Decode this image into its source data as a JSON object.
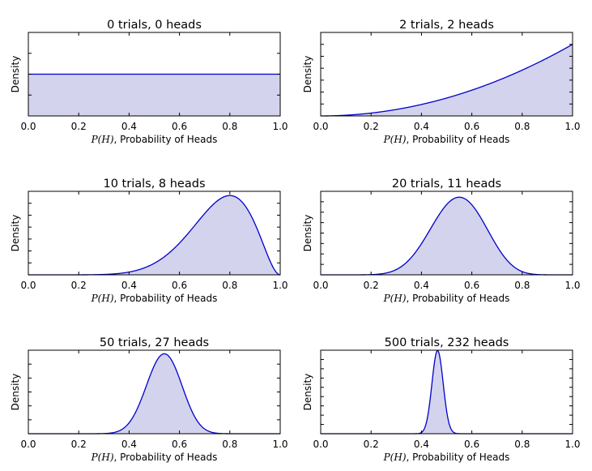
{
  "chart_data": [
    {
      "type": "area",
      "title": "0 trials, 0 heads",
      "trials": 0,
      "heads": 0,
      "xlabel_math": "P(H)",
      "xlabel": ", Probability of Heads",
      "ylabel": "Density",
      "xlim": [
        0,
        1
      ],
      "ylim": [
        0,
        2
      ],
      "ytick_step": 0.5,
      "xticks": [
        "0.0",
        "0.2",
        "0.4",
        "0.6",
        "0.8",
        "1.0"
      ]
    },
    {
      "type": "area",
      "title": "2 trials, 2 heads",
      "trials": 2,
      "heads": 2,
      "xlabel_math": "P(H)",
      "xlabel": ", Probability of Heads",
      "ylabel": "Density",
      "xlim": [
        0,
        1
      ],
      "ylim": [
        0,
        3.5
      ],
      "ytick_step": 0.5,
      "xticks": [
        "0.0",
        "0.2",
        "0.4",
        "0.6",
        "0.8",
        "1.0"
      ]
    },
    {
      "type": "area",
      "title": "10 trials, 8 heads",
      "trials": 10,
      "heads": 8,
      "xlabel_math": "P(H)",
      "xlabel": ", Probability of Heads",
      "ylabel": "Density",
      "xlim": [
        0,
        1
      ],
      "ylim": [
        0,
        3.5
      ],
      "ytick_step": 0.5,
      "xticks": [
        "0.0",
        "0.2",
        "0.4",
        "0.6",
        "0.8",
        "1.0"
      ]
    },
    {
      "type": "area",
      "title": "20 trials, 11 heads",
      "trials": 20,
      "heads": 11,
      "xlabel_math": "P(H)",
      "xlabel": ", Probability of Heads",
      "ylabel": "Density",
      "xlim": [
        0,
        1
      ],
      "ylim": [
        0,
        4
      ],
      "ytick_step": 0.5,
      "xticks": [
        "0.0",
        "0.2",
        "0.4",
        "0.6",
        "0.8",
        "1.0"
      ]
    },
    {
      "type": "area",
      "title": "50 trials, 27 heads",
      "trials": 50,
      "heads": 27,
      "xlabel_math": "P(H)",
      "xlabel": ", Probability of Heads",
      "ylabel": "Density",
      "xlim": [
        0,
        1
      ],
      "ylim": [
        0,
        6
      ],
      "ytick_step": 1,
      "xticks": [
        "0.0",
        "0.2",
        "0.4",
        "0.6",
        "0.8",
        "1.0"
      ]
    },
    {
      "type": "area",
      "title": "500 trials, 232 heads",
      "trials": 500,
      "heads": 232,
      "xlabel_math": "P(H)",
      "xlabel": ", Probability of Heads",
      "ylabel": "Density",
      "xlim": [
        0,
        1
      ],
      "ylim": [
        0,
        18
      ],
      "ytick_step": 2,
      "xticks": [
        "0.0",
        "0.2",
        "0.4",
        "0.6",
        "0.8",
        "1.0"
      ]
    }
  ],
  "colors": {
    "line": "#0000cc",
    "fill": "#d3d3ee",
    "axes": "#000000"
  }
}
